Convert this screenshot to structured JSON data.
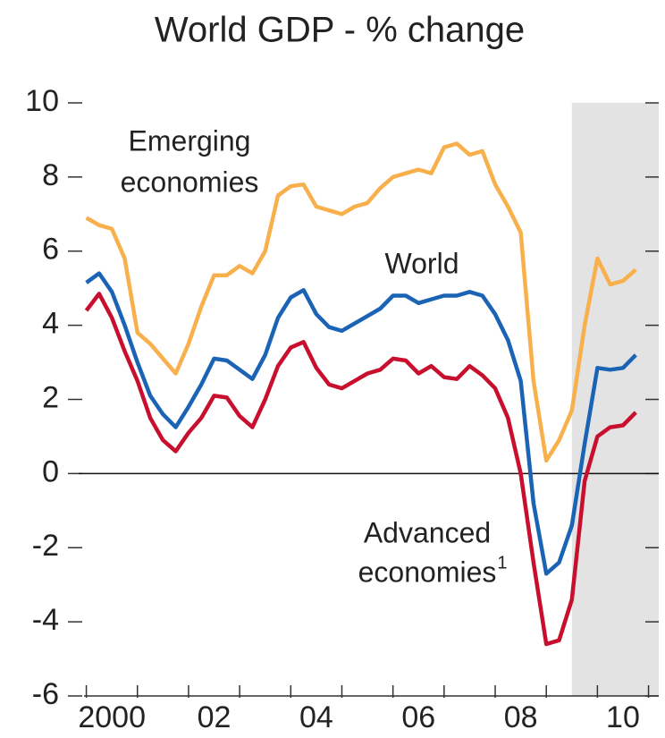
{
  "chart_data": {
    "type": "line",
    "title": "World GDP - % change",
    "x": [
      2000,
      2000.25,
      2000.5,
      2000.75,
      2001,
      2001.25,
      2001.5,
      2001.75,
      2002,
      2002.25,
      2002.5,
      2002.75,
      2003,
      2003.25,
      2003.5,
      2003.75,
      2004,
      2004.25,
      2004.5,
      2004.75,
      2005,
      2005.25,
      2005.5,
      2005.75,
      2006,
      2006.25,
      2006.5,
      2006.75,
      2007,
      2007.25,
      2007.5,
      2007.75,
      2008,
      2008.25,
      2008.5,
      2008.75,
      2009,
      2009.25,
      2009.5,
      2009.75,
      2010,
      2010.25,
      2010.5,
      2010.75
    ],
    "series": [
      {
        "name": "Emerging economies",
        "color": "#f8b04c",
        "values": [
          6.9,
          6.7,
          6.6,
          5.8,
          3.8,
          3.5,
          3.1,
          2.7,
          3.5,
          4.5,
          5.35,
          5.35,
          5.6,
          5.4,
          6.0,
          7.5,
          7.75,
          7.8,
          7.2,
          7.1,
          7.0,
          7.2,
          7.3,
          7.7,
          8.0,
          8.1,
          8.2,
          8.1,
          8.8,
          8.9,
          8.6,
          8.7,
          7.8,
          7.2,
          6.5,
          2.5,
          0.35,
          0.9,
          1.7,
          4.0,
          5.8,
          5.1,
          5.2,
          5.5
        ]
      },
      {
        "name": "World",
        "color": "#1a63b5",
        "values": [
          5.15,
          5.4,
          4.9,
          4.0,
          3.0,
          2.1,
          1.6,
          1.25,
          1.8,
          2.4,
          3.1,
          3.05,
          2.8,
          2.55,
          3.2,
          4.2,
          4.75,
          4.95,
          4.3,
          3.95,
          3.85,
          4.05,
          4.25,
          4.45,
          4.8,
          4.8,
          4.6,
          4.7,
          4.8,
          4.8,
          4.9,
          4.8,
          4.3,
          3.6,
          2.5,
          -0.8,
          -2.7,
          -2.4,
          -1.4,
          0.8,
          2.85,
          2.8,
          2.85,
          3.2
        ]
      },
      {
        "name": "Advanced economies",
        "color": "#c8102e",
        "values": [
          4.4,
          4.85,
          4.2,
          3.3,
          2.5,
          1.5,
          0.9,
          0.6,
          1.1,
          1.5,
          2.1,
          2.05,
          1.55,
          1.25,
          2.0,
          2.9,
          3.4,
          3.55,
          2.85,
          2.4,
          2.3,
          2.5,
          2.7,
          2.8,
          3.1,
          3.05,
          2.7,
          2.9,
          2.6,
          2.55,
          2.9,
          2.65,
          2.3,
          1.5,
          0.0,
          -2.4,
          -4.6,
          -4.5,
          -3.4,
          -0.2,
          1.0,
          1.25,
          1.3,
          1.65
        ]
      }
    ],
    "annotations": [
      {
        "lines": [
          "Emerging",
          "economies"
        ]
      },
      {
        "lines": [
          "World"
        ]
      },
      {
        "lines": [
          "Advanced",
          "economies"
        ],
        "sup": "1"
      }
    ],
    "xlim": [
      1999.85,
      2011.2
    ],
    "xticks": [
      {
        "value": 2000.5,
        "label": "2000"
      },
      {
        "value": 2002.5,
        "label": "02"
      },
      {
        "value": 2004.5,
        "label": "04"
      },
      {
        "value": 2006.5,
        "label": "06"
      },
      {
        "value": 2008.5,
        "label": "08"
      },
      {
        "value": 2010.5,
        "label": "10"
      }
    ],
    "xminorticks": [
      2000,
      2001,
      2002,
      2003,
      2004,
      2005,
      2006,
      2007,
      2008,
      2009,
      2010,
      2011
    ],
    "ylim": [
      -6,
      10
    ],
    "yticks": [
      -6,
      -4,
      -2,
      0,
      2,
      4,
      6,
      8,
      10
    ],
    "shaded_range": [
      2009.5,
      2011.2
    ],
    "zero_line": true
  }
}
